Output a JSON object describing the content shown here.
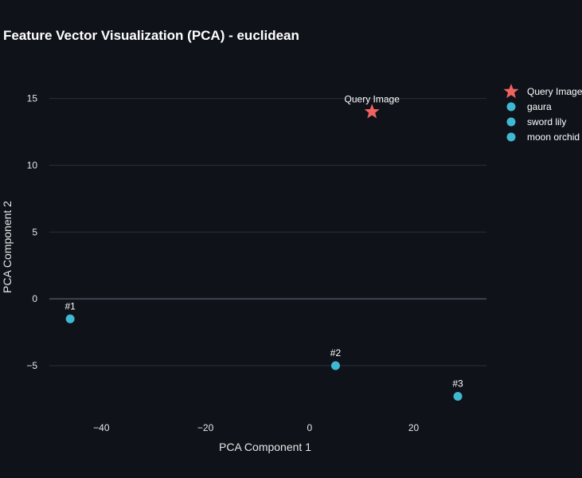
{
  "chart_data": {
    "type": "scatter",
    "title": "Feature Vector Visualization (PCA) - euclidean",
    "xlabel": "PCA Component 1",
    "ylabel": "PCA Component 2",
    "xlim": [
      -50,
      34
    ],
    "ylim": [
      -8.7,
      17.6
    ],
    "xticks": [
      -40,
      -20,
      0,
      20
    ],
    "yticks": [
      -5,
      0,
      5,
      10,
      15
    ],
    "xtick_labels": [
      "−40",
      "−20",
      "0",
      "20"
    ],
    "ytick_labels": [
      "−5",
      "0",
      "5",
      "10",
      "15"
    ],
    "grid": true,
    "legend_position": "right",
    "series": [
      {
        "name": "Query Image",
        "marker": "star",
        "color": "#ef6461",
        "x": [
          12
        ],
        "y": [
          14
        ],
        "labels": [
          "Query Image"
        ]
      },
      {
        "name": "gaura",
        "marker": "circle",
        "color": "#3fb8d1",
        "x": [
          -46
        ],
        "y": [
          -1.5
        ],
        "labels": [
          "#1"
        ]
      },
      {
        "name": "sword lily",
        "marker": "circle",
        "color": "#3fb8d1",
        "x": [
          5
        ],
        "y": [
          -5
        ],
        "labels": [
          "#2"
        ]
      },
      {
        "name": "moon orchid",
        "marker": "circle",
        "color": "#3fb8d1",
        "x": [
          28.5
        ],
        "y": [
          -7.3
        ],
        "labels": [
          "#3"
        ]
      }
    ]
  }
}
